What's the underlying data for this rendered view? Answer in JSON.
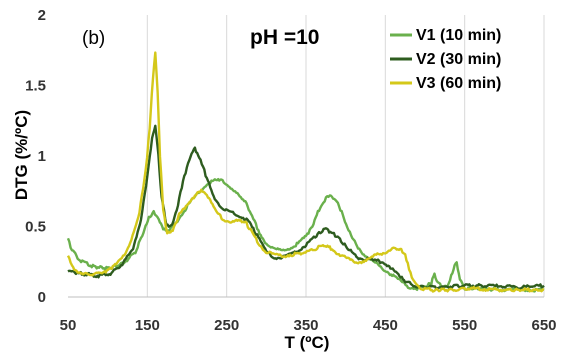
{
  "chart_data": {
    "type": "line",
    "title": "pH =10",
    "panel_label": "(b)",
    "xlabel": "T (ºC)",
    "ylabel": "DTG (%/ºC)",
    "xlim": [
      50,
      650
    ],
    "ylim": [
      0,
      2
    ],
    "xticks": [
      50,
      150,
      250,
      350,
      450,
      550,
      650
    ],
    "yticks": [
      0,
      0.5,
      1,
      1.5,
      2
    ],
    "ytick_labels": [
      "0",
      "0.5",
      "1",
      "1.5",
      "2"
    ],
    "grid": "vertical",
    "legend_position": "top-right",
    "series": [
      {
        "name": "V1 (10 min)",
        "color": "#6ab04c",
        "points": [
          [
            50,
            0.42
          ],
          [
            55,
            0.33
          ],
          [
            65,
            0.26
          ],
          [
            80,
            0.22
          ],
          [
            100,
            0.2
          ],
          [
            120,
            0.24
          ],
          [
            135,
            0.32
          ],
          [
            145,
            0.45
          ],
          [
            152,
            0.57
          ],
          [
            158,
            0.6
          ],
          [
            163,
            0.56
          ],
          [
            170,
            0.48
          ],
          [
            178,
            0.47
          ],
          [
            185,
            0.52
          ],
          [
            195,
            0.6
          ],
          [
            205,
            0.68
          ],
          [
            215,
            0.74
          ],
          [
            225,
            0.8
          ],
          [
            235,
            0.83
          ],
          [
            245,
            0.82
          ],
          [
            255,
            0.78
          ],
          [
            265,
            0.72
          ],
          [
            275,
            0.66
          ],
          [
            282,
            0.58
          ],
          [
            290,
            0.47
          ],
          [
            300,
            0.38
          ],
          [
            310,
            0.34
          ],
          [
            320,
            0.33
          ],
          [
            330,
            0.35
          ],
          [
            340,
            0.38
          ],
          [
            350,
            0.43
          ],
          [
            358,
            0.5
          ],
          [
            365,
            0.6
          ],
          [
            372,
            0.68
          ],
          [
            380,
            0.72
          ],
          [
            387,
            0.7
          ],
          [
            395,
            0.6
          ],
          [
            402,
            0.5
          ],
          [
            410,
            0.4
          ],
          [
            420,
            0.32
          ],
          [
            430,
            0.27
          ],
          [
            440,
            0.23
          ],
          [
            450,
            0.19
          ],
          [
            460,
            0.15
          ],
          [
            470,
            0.11
          ],
          [
            480,
            0.07
          ],
          [
            490,
            0.06
          ],
          [
            500,
            0.07
          ],
          [
            508,
            0.1
          ],
          [
            512,
            0.16
          ],
          [
            516,
            0.1
          ],
          [
            522,
            0.07
          ],
          [
            530,
            0.09
          ],
          [
            536,
            0.2
          ],
          [
            540,
            0.25
          ],
          [
            544,
            0.12
          ],
          [
            550,
            0.06
          ],
          [
            570,
            0.06
          ],
          [
            600,
            0.05
          ],
          [
            625,
            0.05
          ],
          [
            650,
            0.05
          ]
        ]
      },
      {
        "name": "V2 (30 min)",
        "color": "#2e5c1f",
        "points": [
          [
            50,
            0.18
          ],
          [
            60,
            0.17
          ],
          [
            75,
            0.16
          ],
          [
            90,
            0.15
          ],
          [
            105,
            0.17
          ],
          [
            120,
            0.24
          ],
          [
            132,
            0.35
          ],
          [
            142,
            0.55
          ],
          [
            150,
            0.85
          ],
          [
            156,
            1.12
          ],
          [
            160,
            1.22
          ],
          [
            164,
            1.0
          ],
          [
            168,
            0.7
          ],
          [
            174,
            0.52
          ],
          [
            180,
            0.5
          ],
          [
            187,
            0.62
          ],
          [
            195,
            0.82
          ],
          [
            203,
            0.98
          ],
          [
            210,
            1.05
          ],
          [
            217,
            0.98
          ],
          [
            225,
            0.84
          ],
          [
            235,
            0.7
          ],
          [
            245,
            0.62
          ],
          [
            255,
            0.6
          ],
          [
            265,
            0.58
          ],
          [
            275,
            0.55
          ],
          [
            282,
            0.5
          ],
          [
            290,
            0.42
          ],
          [
            300,
            0.32
          ],
          [
            310,
            0.28
          ],
          [
            320,
            0.28
          ],
          [
            330,
            0.3
          ],
          [
            340,
            0.33
          ],
          [
            350,
            0.37
          ],
          [
            360,
            0.42
          ],
          [
            368,
            0.46
          ],
          [
            375,
            0.48
          ],
          [
            382,
            0.46
          ],
          [
            390,
            0.42
          ],
          [
            397,
            0.38
          ],
          [
            405,
            0.33
          ],
          [
            415,
            0.28
          ],
          [
            425,
            0.27
          ],
          [
            435,
            0.26
          ],
          [
            445,
            0.25
          ],
          [
            455,
            0.22
          ],
          [
            465,
            0.16
          ],
          [
            475,
            0.11
          ],
          [
            490,
            0.07
          ],
          [
            520,
            0.07
          ],
          [
            550,
            0.08
          ],
          [
            580,
            0.08
          ],
          [
            620,
            0.07
          ],
          [
            650,
            0.08
          ]
        ]
      },
      {
        "name": "V3 (60 min)",
        "color": "#d4c81a",
        "points": [
          [
            50,
            0.3
          ],
          [
            55,
            0.22
          ],
          [
            62,
            0.18
          ],
          [
            75,
            0.16
          ],
          [
            90,
            0.17
          ],
          [
            105,
            0.2
          ],
          [
            118,
            0.27
          ],
          [
            130,
            0.4
          ],
          [
            140,
            0.6
          ],
          [
            148,
            0.9
          ],
          [
            153,
            1.2
          ],
          [
            157,
            1.55
          ],
          [
            160,
            1.73
          ],
          [
            163,
            1.45
          ],
          [
            166,
            1.0
          ],
          [
            170,
            0.62
          ],
          [
            175,
            0.45
          ],
          [
            182,
            0.48
          ],
          [
            190,
            0.58
          ],
          [
            200,
            0.66
          ],
          [
            210,
            0.72
          ],
          [
            218,
            0.76
          ],
          [
            225,
            0.73
          ],
          [
            235,
            0.62
          ],
          [
            245,
            0.55
          ],
          [
            255,
            0.53
          ],
          [
            265,
            0.54
          ],
          [
            272,
            0.54
          ],
          [
            280,
            0.48
          ],
          [
            290,
            0.38
          ],
          [
            300,
            0.32
          ],
          [
            310,
            0.3
          ],
          [
            320,
            0.29
          ],
          [
            330,
            0.3
          ],
          [
            345,
            0.31
          ],
          [
            360,
            0.34
          ],
          [
            370,
            0.36
          ],
          [
            380,
            0.35
          ],
          [
            390,
            0.31
          ],
          [
            400,
            0.28
          ],
          [
            410,
            0.25
          ],
          [
            420,
            0.25
          ],
          [
            430,
            0.27
          ],
          [
            440,
            0.3
          ],
          [
            450,
            0.32
          ],
          [
            460,
            0.34
          ],
          [
            470,
            0.33
          ],
          [
            475,
            0.3
          ],
          [
            480,
            0.2
          ],
          [
            485,
            0.12
          ],
          [
            495,
            0.06
          ],
          [
            510,
            0.05
          ],
          [
            530,
            0.05
          ],
          [
            560,
            0.06
          ],
          [
            600,
            0.05
          ],
          [
            650,
            0.05
          ]
        ]
      }
    ]
  }
}
